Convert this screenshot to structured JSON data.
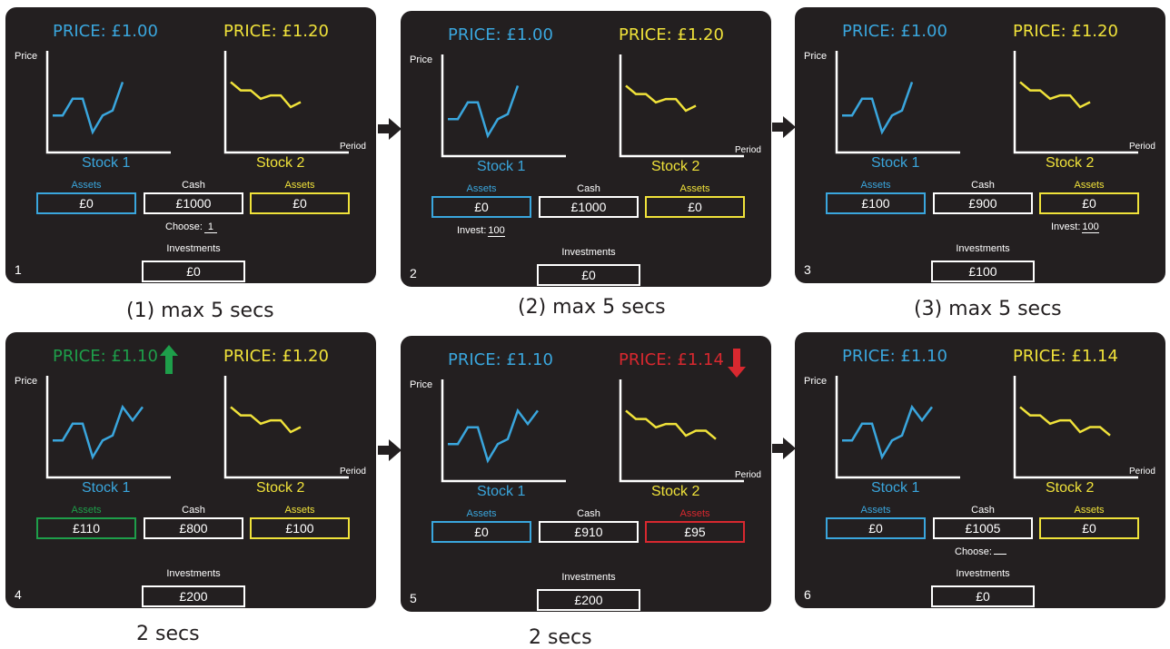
{
  "colors": {
    "blue": "#3aa6dd",
    "yellow": "#f0e23a",
    "green": "#1e9e4a",
    "red": "#d8282f",
    "white": "#ffffff",
    "panel_bg": "#231f20"
  },
  "axis": {
    "price_label": "Price",
    "period_label": "Period"
  },
  "stock1_series": [
    3,
    3,
    4,
    4,
    2,
    3,
    3.3,
    5,
    4.2,
    5
  ],
  "stock2_series": [
    5,
    4.5,
    4.5,
    4,
    4.2,
    4.2,
    3.5,
    3.8,
    3.8,
    3.3
  ],
  "panels": [
    {
      "number": "1",
      "price1": "PRICE: £1.00",
      "price1_color": "blue",
      "price2": "PRICE: £1.20",
      "price2_color": "yellow",
      "stock1_name": "Stock 1",
      "stock2_name": "Stock 2",
      "stock1_points": 8,
      "stock2_points": 8,
      "assets1_label": "Assets",
      "assets1_value": "£0",
      "assets1_color": "blue",
      "cash_label": "Cash",
      "cash_value": "£1000",
      "assets2_label": "Assets",
      "assets2_value": "£0",
      "assets2_color": "yellow",
      "action_label": "Choose:",
      "action_value": "1",
      "action_slot": "center",
      "investments_label": "Investments",
      "investments_value": "£0",
      "indicator": null
    },
    {
      "number": "2",
      "price1": "PRICE: £1.00",
      "price1_color": "blue",
      "price2": "PRICE: £1.20",
      "price2_color": "yellow",
      "stock1_name": "Stock 1",
      "stock2_name": "Stock 2",
      "stock1_points": 8,
      "stock2_points": 8,
      "assets1_label": "Assets",
      "assets1_value": "£0",
      "assets1_color": "blue",
      "cash_label": "Cash",
      "cash_value": "£1000",
      "assets2_label": "Assets",
      "assets2_value": "£0",
      "assets2_color": "yellow",
      "action_label": "Invest:",
      "action_value": "100",
      "action_slot": "left",
      "investments_label": "Investments",
      "investments_value": "£0",
      "indicator": null
    },
    {
      "number": "3",
      "price1": "PRICE: £1.00",
      "price1_color": "blue",
      "price2": "PRICE: £1.20",
      "price2_color": "yellow",
      "stock1_name": "Stock 1",
      "stock2_name": "Stock 2",
      "stock1_points": 8,
      "stock2_points": 8,
      "assets1_label": "Assets",
      "assets1_value": "£100",
      "assets1_color": "blue",
      "cash_label": "Cash",
      "cash_value": "£900",
      "assets2_label": "Assets",
      "assets2_value": "£0",
      "assets2_color": "yellow",
      "action_label": "Invest:",
      "action_value": "100",
      "action_slot": "right",
      "investments_label": "Investments",
      "investments_value": "£100",
      "indicator": null
    },
    {
      "number": "4",
      "price1": "PRICE: £1.10",
      "price1_color": "green",
      "price2": "PRICE: £1.20",
      "price2_color": "yellow",
      "stock1_name": "Stock 1",
      "stock2_name": "Stock 2",
      "stock1_points": 10,
      "stock2_points": 8,
      "assets1_label": "Assets",
      "assets1_value": "£110",
      "assets1_color": "green",
      "cash_label": "Cash",
      "cash_value": "£800",
      "assets2_label": "Assets",
      "assets2_value": "£100",
      "assets2_color": "yellow",
      "action_label": "",
      "action_value": "",
      "action_slot": "none",
      "investments_label": "Investments",
      "investments_value": "£200",
      "indicator": "up"
    },
    {
      "number": "5",
      "price1": "PRICE: £1.10",
      "price1_color": "blue",
      "price2": "PRICE: £1.14",
      "price2_color": "red",
      "stock1_name": "Stock 1",
      "stock2_name": "Stock 2",
      "stock1_points": 10,
      "stock2_points": 10,
      "assets1_label": "Assets",
      "assets1_value": "£0",
      "assets1_color": "blue",
      "cash_label": "Cash",
      "cash_value": "£910",
      "assets2_label": "Assets",
      "assets2_value": "£95",
      "assets2_color": "red",
      "action_label": "",
      "action_value": "",
      "action_slot": "none",
      "investments_label": "Investments",
      "investments_value": "£200",
      "indicator": "down"
    },
    {
      "number": "6",
      "price1": "PRICE: £1.10",
      "price1_color": "blue",
      "price2": "PRICE: £1.14",
      "price2_color": "yellow",
      "stock1_name": "Stock 1",
      "stock2_name": "Stock 2",
      "stock1_points": 10,
      "stock2_points": 10,
      "assets1_label": "Assets",
      "assets1_value": "£0",
      "assets1_color": "blue",
      "cash_label": "Cash",
      "cash_value": "£1005",
      "assets2_label": "Assets",
      "assets2_value": "£0",
      "assets2_color": "yellow",
      "action_label": "Choose:",
      "action_value": "",
      "action_slot": "center",
      "investments_label": "Investments",
      "investments_value": "£0",
      "indicator": null
    }
  ],
  "captions": [
    "(1) max 5 secs",
    "(2) max 5 secs",
    "(3) max 5 secs",
    "2 secs",
    "2 secs"
  ]
}
